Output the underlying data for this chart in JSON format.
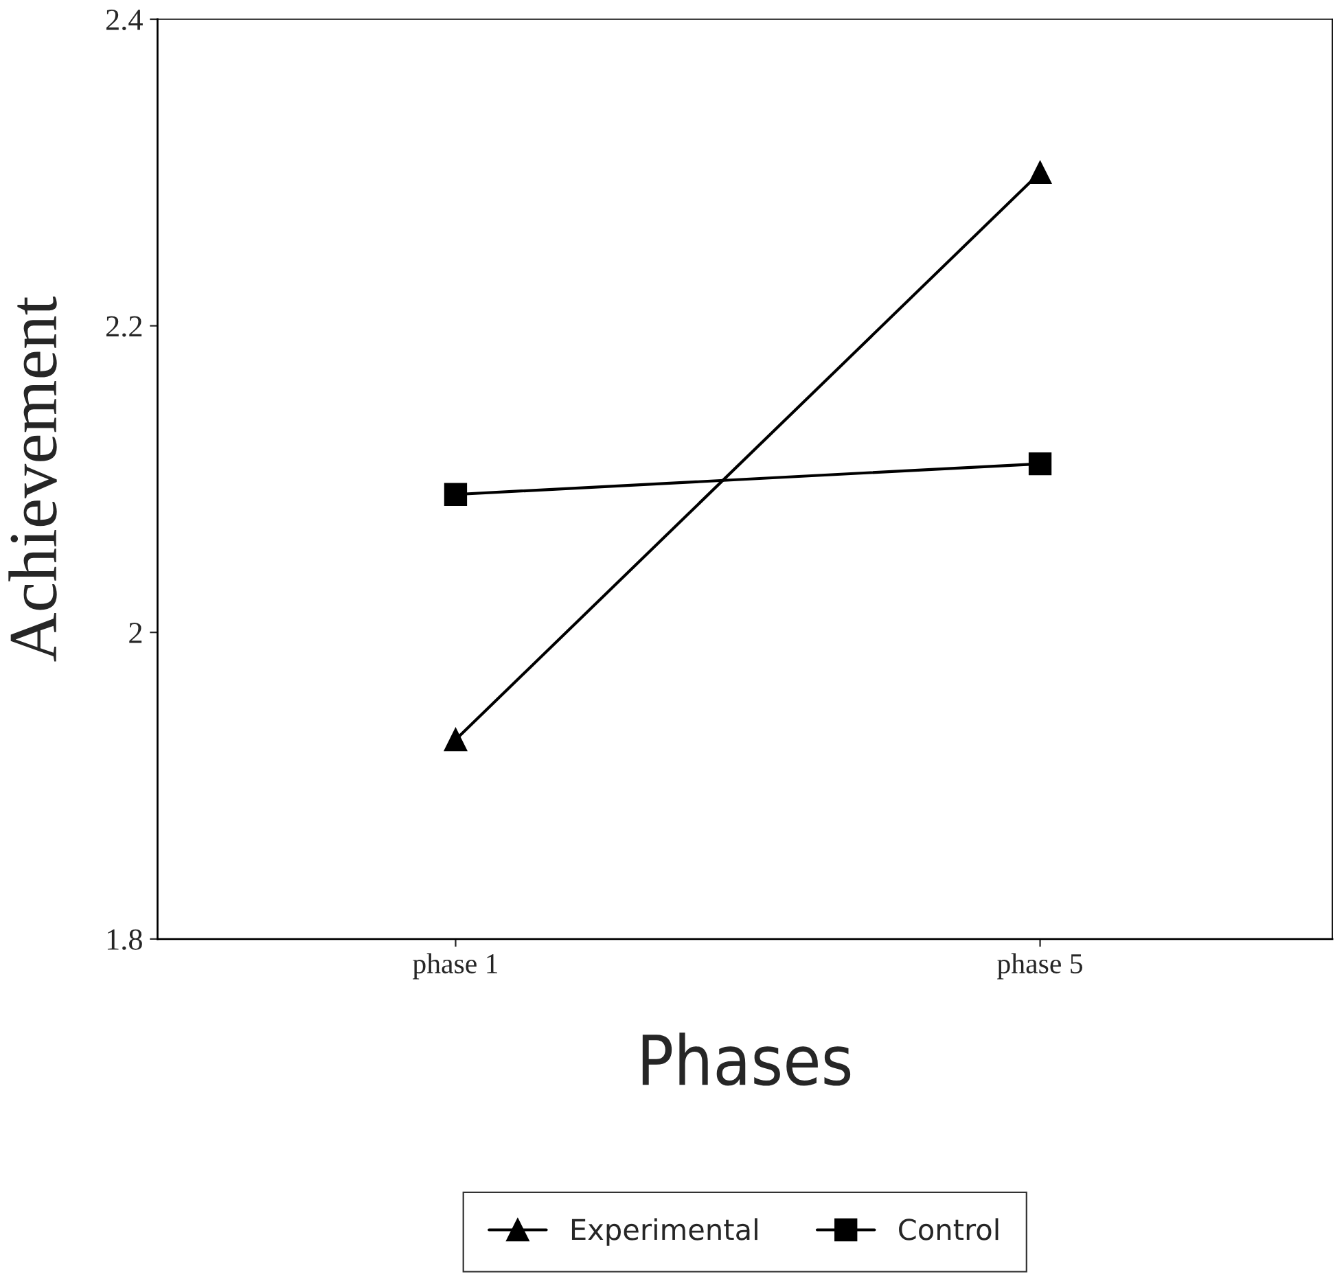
{
  "chart_data": {
    "type": "line",
    "xlabel": "Phases",
    "ylabel": "Achievement",
    "categories": [
      "phase 1",
      "phase 5"
    ],
    "series": [
      {
        "name": "Experimental",
        "color": "#000000",
        "marker": "triangle",
        "values": [
          1.93,
          2.3
        ]
      },
      {
        "name": "Control",
        "color": "#000000",
        "marker": "square",
        "values": [
          2.09,
          2.11
        ]
      }
    ],
    "ylim": [
      1.8,
      2.4
    ],
    "yticks": [
      1.8,
      {
        "value": 2.0,
        "label": "2"
      },
      2.2,
      2.4
    ],
    "line_style": "solid",
    "grid": false,
    "legend": "bottom"
  }
}
